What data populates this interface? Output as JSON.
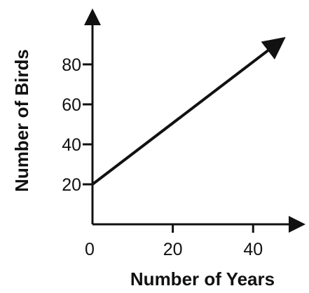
{
  "chart_data": {
    "type": "line",
    "xlabel": "Number of Years",
    "ylabel": "Number of Birds",
    "xlim": [
      0,
      52
    ],
    "ylim": [
      0,
      108
    ],
    "x_ticks": [
      0,
      20,
      40
    ],
    "x_tick_labels": [
      "0",
      "20",
      "40"
    ],
    "y_ticks": [
      20,
      40,
      60,
      80
    ],
    "y_tick_labels": [
      "20",
      "40",
      "60",
      "80"
    ],
    "series": [
      {
        "x": [
          0,
          47
        ],
        "y": [
          20,
          92
        ],
        "arrow_end": true
      }
    ],
    "grid": false,
    "colors": {
      "ink": "#111111",
      "background": "#ffffff"
    }
  }
}
